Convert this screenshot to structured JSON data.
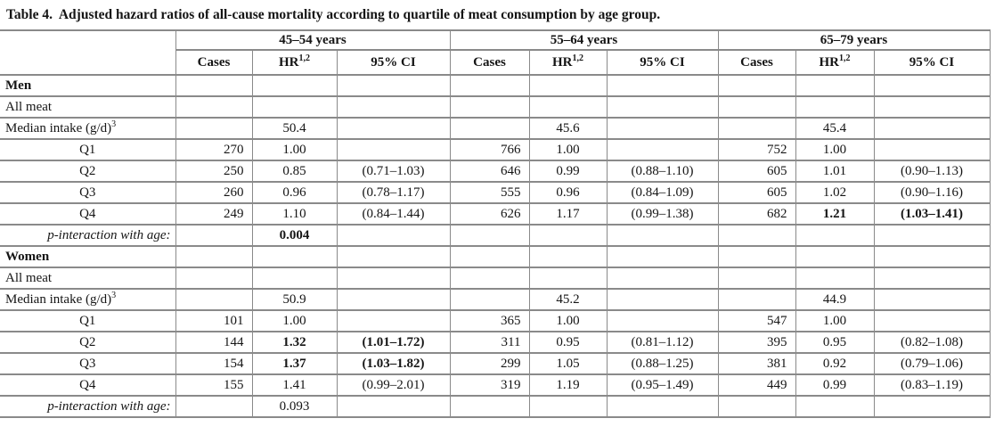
{
  "title": "Table 4.  Adjusted hazard ratios of all-cause mortality according to quartile of meat consumption by age group.",
  "colors": {
    "border": "#8a8a8a",
    "text": "#151515",
    "background": "#ffffff"
  },
  "header": {
    "age_groups": [
      "45–54 years",
      "55–64 years",
      "65–79 years"
    ],
    "sub": {
      "cases": "Cases",
      "hr_base": "HR",
      "hr_sup": "1,2",
      "ci": "95% CI"
    }
  },
  "rows": [
    {
      "label": "Men",
      "style": "section",
      "cells": [
        "",
        "",
        "",
        "",
        "",
        "",
        "",
        "",
        ""
      ]
    },
    {
      "label": "All meat",
      "style": "plain",
      "cells": [
        "",
        "",
        "",
        "",
        "",
        "",
        "",
        "",
        ""
      ]
    },
    {
      "label": "Median intake (g/d)",
      "label_sup": "3",
      "style": "plain",
      "cells": [
        "",
        "50.4",
        "",
        "",
        "45.6",
        "",
        "",
        "45.4",
        ""
      ]
    },
    {
      "label": "Q1",
      "style": "quartile",
      "cells": [
        "270",
        "1.00",
        "",
        "766",
        "1.00",
        "",
        "752",
        "1.00",
        ""
      ]
    },
    {
      "label": "Q2",
      "style": "quartile",
      "cells": [
        "250",
        "0.85",
        "(0.71–1.03)",
        "646",
        "0.99",
        "(0.88–1.10)",
        "605",
        "1.01",
        "(0.90–1.13)"
      ]
    },
    {
      "label": "Q3",
      "style": "quartile",
      "cells": [
        "260",
        "0.96",
        "(0.78–1.17)",
        "555",
        "0.96",
        "(0.84–1.09)",
        "605",
        "1.02",
        "(0.90–1.16)"
      ]
    },
    {
      "label": "Q4",
      "style": "quartile",
      "cells": [
        "249",
        "1.10",
        "(0.84–1.44)",
        "626",
        "1.17",
        "(0.99–1.38)",
        "682",
        "1.21",
        "(1.03–1.41)"
      ],
      "bold_cells": [
        7,
        8
      ]
    },
    {
      "label": "p-interaction with age:",
      "style": "pinteraction",
      "cells": [
        "",
        "0.004",
        "",
        "",
        "",
        "",
        "",
        "",
        ""
      ],
      "bold_cells": [
        1
      ]
    },
    {
      "label": "Women",
      "style": "section",
      "cells": [
        "",
        "",
        "",
        "",
        "",
        "",
        "",
        "",
        ""
      ]
    },
    {
      "label": "All meat",
      "style": "plain",
      "cells": [
        "",
        "",
        "",
        "",
        "",
        "",
        "",
        "",
        ""
      ]
    },
    {
      "label": "Median intake (g/d)",
      "label_sup": "3",
      "style": "plain",
      "cells": [
        "",
        "50.9",
        "",
        "",
        "45.2",
        "",
        "",
        "44.9",
        ""
      ]
    },
    {
      "label": "Q1",
      "style": "quartile",
      "cells": [
        "101",
        "1.00",
        "",
        "365",
        "1.00",
        "",
        "547",
        "1.00",
        ""
      ]
    },
    {
      "label": "Q2",
      "style": "quartile",
      "cells": [
        "144",
        "1.32",
        "(1.01–1.72)",
        "311",
        "0.95",
        "(0.81–1.12)",
        "395",
        "0.95",
        "(0.82–1.08)"
      ],
      "bold_cells": [
        1,
        2
      ]
    },
    {
      "label": "Q3",
      "style": "quartile",
      "cells": [
        "154",
        "1.37",
        "(1.03–1.82)",
        "299",
        "1.05",
        "(0.88–1.25)",
        "381",
        "0.92",
        "(0.79–1.06)"
      ],
      "bold_cells": [
        1,
        2
      ]
    },
    {
      "label": "Q4",
      "style": "quartile",
      "cells": [
        "155",
        "1.41",
        "(0.99–2.01)",
        "319",
        "1.19",
        "(0.95–1.49)",
        "449",
        "0.99",
        "(0.83–1.19)"
      ]
    },
    {
      "label": "p-interaction with age:",
      "style": "pinteraction",
      "cells": [
        "",
        "0.093",
        "",
        "",
        "",
        "",
        "",
        "",
        ""
      ]
    }
  ]
}
